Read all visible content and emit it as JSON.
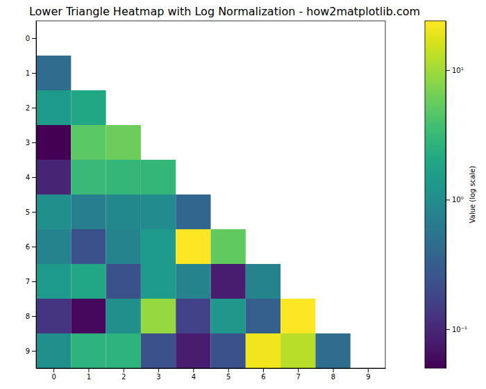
{
  "chart_data": {
    "type": "heatmap",
    "title": "Lower Triangle Heatmap with Log Normalization - how2matplotlib.com",
    "colorbar_label": "Value (log scale)",
    "log": true,
    "x": [
      0,
      1,
      2,
      3,
      4,
      5,
      6,
      7,
      8,
      9
    ],
    "y": [
      0,
      1,
      2,
      3,
      4,
      5,
      6,
      7,
      8,
      9
    ],
    "xlim": [
      -0.5,
      9.5
    ],
    "ylim": [
      9.5,
      -0.5
    ],
    "xticks": [
      0,
      1,
      2,
      3,
      4,
      5,
      6,
      7,
      8,
      9
    ],
    "yticks": [
      0,
      1,
      2,
      3,
      4,
      5,
      6,
      7,
      8,
      9
    ],
    "cells": [
      [
        null,
        null,
        null,
        null,
        null,
        null,
        null,
        null,
        null,
        null
      ],
      [
        0.43,
        null,
        null,
        null,
        null,
        null,
        null,
        null,
        null,
        null
      ],
      [
        1.46,
        1.98,
        null,
        null,
        null,
        null,
        null,
        null,
        null,
        null
      ],
      [
        0.05,
        4.95,
        5.96,
        null,
        null,
        null,
        null,
        null,
        null,
        null
      ],
      [
        0.093,
        3.2,
        3.0,
        3.0,
        null,
        null,
        null,
        null,
        null,
        null
      ],
      [
        1.07,
        0.7,
        0.89,
        0.95,
        0.38,
        null,
        null,
        null,
        null,
        null
      ],
      [
        0.79,
        0.23,
        0.79,
        1.46,
        24,
        5.3,
        null,
        null,
        null,
        null
      ],
      [
        1.46,
        1.98,
        0.23,
        1.46,
        0.79,
        0.08,
        0.79,
        null,
        null,
        null
      ],
      [
        0.13,
        0.057,
        1.07,
        9.1,
        0.17,
        1.3,
        0.32,
        24,
        null,
        null
      ],
      [
        1.07,
        2.7,
        2.7,
        0.23,
        0.08,
        0.23,
        21,
        12.3,
        0.43,
        null
      ]
    ],
    "color_range": [
      0.05,
      24
    ],
    "color_ticks": [
      {
        "value": 0.1,
        "label": "10⁻¹"
      },
      {
        "value": 1,
        "label": "10⁰"
      },
      {
        "value": 10,
        "label": "10¹"
      }
    ]
  }
}
